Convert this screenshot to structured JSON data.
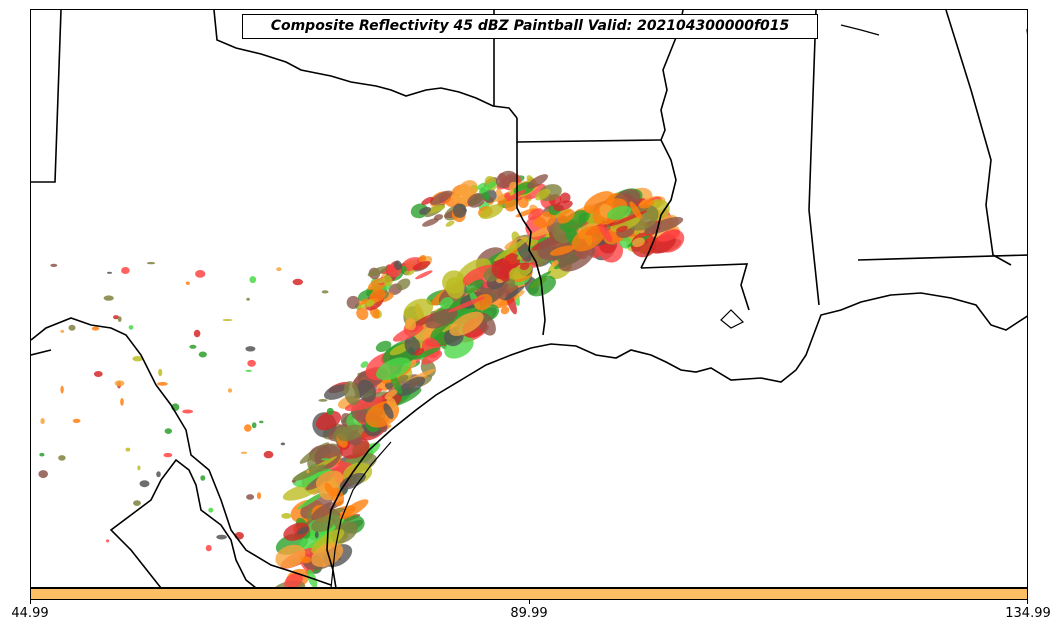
{
  "map": {
    "title": "Composite Reflectivity 45 dBZ Paintball Valid: 202104300000f015",
    "region": "Texas / Louisiana / Gulf Coast",
    "member_colors": [
      "#d62728",
      "#ff7f0e",
      "#f8a33a",
      "#2ca02c",
      "#4bd847",
      "#8c564b",
      "#bcbd22",
      "#808040",
      "#555555",
      "#ff4444"
    ],
    "colorbar": {
      "color": "#fdbf63",
      "ticks": [
        "44.99",
        "89.99",
        "134.99"
      ]
    }
  }
}
